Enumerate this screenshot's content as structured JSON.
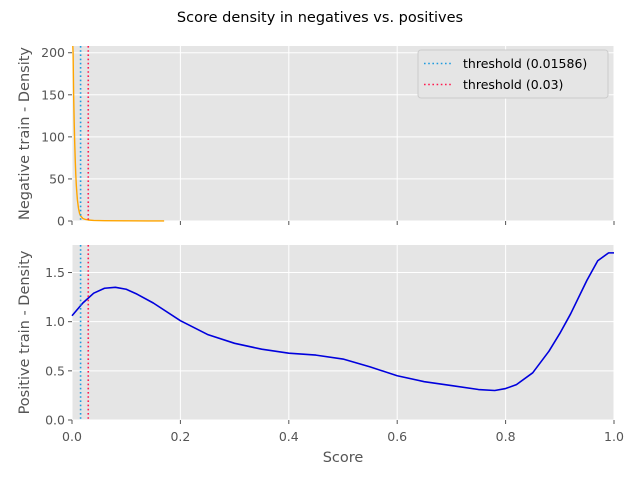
{
  "chart_data": {
    "type": "line",
    "title": "Score density in negatives vs. positives",
    "xlabel": "Score",
    "x_ticks": [
      "0.0",
      "0.2",
      "0.4",
      "0.6",
      "0.8",
      "1.0"
    ],
    "x_tick_values": [
      0,
      0.2,
      0.4,
      0.6,
      0.8,
      1.0
    ],
    "xlim": [
      0,
      1
    ],
    "grid": true,
    "thresholds": [
      {
        "label": "threshold (0.01586)",
        "value": 0.01586,
        "color": "#1f9bde"
      },
      {
        "label": "threshold (0.03)",
        "value": 0.03,
        "color": "#ff1a4f"
      }
    ],
    "panels": [
      {
        "ylabel": "Negative train - Density",
        "ylim": [
          0,
          208
        ],
        "y_ticks": [
          "0",
          "50",
          "100",
          "150",
          "200"
        ],
        "y_tick_values": [
          0,
          50,
          100,
          150,
          200
        ],
        "legend": "top-right",
        "series": [
          {
            "color": "#ffa500",
            "x": [
              0.0015,
              0.002,
              0.0025,
              0.003,
              0.004,
              0.005,
              0.006,
              0.007,
              0.008,
              0.009,
              0.01,
              0.012,
              0.014,
              0.016,
              0.02,
              0.025,
              0.03,
              0.04,
              0.06,
              0.1,
              0.14,
              0.17
            ],
            "y": [
              208,
              200,
              175,
              150,
              118,
              93,
              72,
              55,
              42,
              33,
              25,
              15,
              9,
              6,
              3,
              1.8,
              1.2,
              0.7,
              0.4,
              0.2,
              0.1,
              0.05
            ]
          }
        ]
      },
      {
        "ylabel": "Positive train - Density",
        "ylim": [
          0,
          1.78
        ],
        "y_ticks": [
          "0.0",
          "0.5",
          "1.0",
          "1.5"
        ],
        "y_tick_values": [
          0,
          0.5,
          1.0,
          1.5
        ],
        "series": [
          {
            "color": "#0000dd",
            "x": [
              0,
              0.02,
              0.04,
              0.06,
              0.08,
              0.1,
              0.12,
              0.15,
              0.2,
              0.25,
              0.3,
              0.35,
              0.4,
              0.45,
              0.5,
              0.55,
              0.6,
              0.65,
              0.7,
              0.75,
              0.78,
              0.8,
              0.82,
              0.85,
              0.88,
              0.9,
              0.92,
              0.95,
              0.97,
              0.99,
              1.0
            ],
            "y": [
              1.06,
              1.19,
              1.29,
              1.34,
              1.35,
              1.33,
              1.28,
              1.19,
              1.01,
              0.87,
              0.78,
              0.72,
              0.68,
              0.66,
              0.62,
              0.54,
              0.45,
              0.39,
              0.35,
              0.31,
              0.3,
              0.32,
              0.36,
              0.48,
              0.7,
              0.88,
              1.08,
              1.42,
              1.62,
              1.7,
              1.7
            ]
          }
        ]
      }
    ]
  }
}
